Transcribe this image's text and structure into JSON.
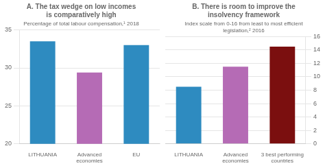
{
  "chart_data": [
    {
      "type": "bar",
      "title": "A. The tax wedge on low incomes\nis comparatively high",
      "subtitle": "Percentage of total labour compensation,¹ 2018",
      "categories": [
        "LITHUANIA",
        "Advanced\neconomies",
        "EU"
      ],
      "values": [
        33.5,
        29.4,
        33.0
      ],
      "colors": [
        "#2E8BC0",
        "#B56BB5",
        "#2E8BC0"
      ],
      "ylim": [
        20,
        35
      ],
      "yticks": [
        20,
        25,
        30,
        35
      ],
      "grid": true
    },
    {
      "type": "bar",
      "title": "B. There is room to improve the\ninsolvency framework",
      "subtitle": "Index scale from 0-16 from least to most efficient\nlegislation,² 2016",
      "categories": [
        "LITHUANIA",
        "Advanced\neconomies",
        "3 best performing\ncountries"
      ],
      "values": [
        8.5,
        11.5,
        14.5
      ],
      "colors": [
        "#2E8BC0",
        "#B56BB5",
        "#7B0F0F"
      ],
      "ylim": [
        0,
        16
      ],
      "yticks": [
        0,
        2,
        4,
        6,
        8,
        10,
        12,
        14,
        16
      ],
      "grid": true
    }
  ]
}
